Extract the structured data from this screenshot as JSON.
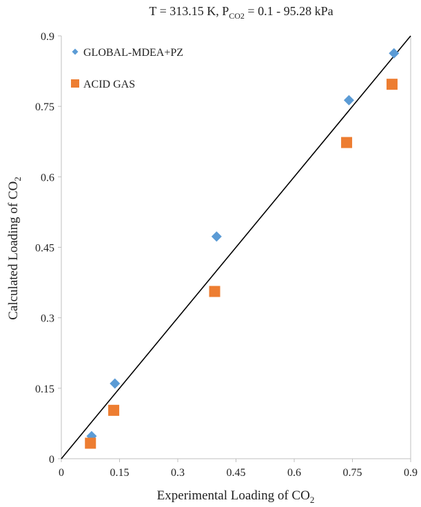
{
  "chart_data": {
    "type": "scatter",
    "title": {
      "prefix": "T = 313.15  K, P",
      "sub": "CO2",
      "suffix": " = 0.1  - 95.28  kPa"
    },
    "xlabel": {
      "main": "Experimental  Loading of CO",
      "sub": "2"
    },
    "ylabel": {
      "main": "Calculated Loading of CO",
      "sub": "2"
    },
    "xlim": [
      0,
      0.9
    ],
    "ylim": [
      0,
      0.9
    ],
    "xticks": [
      "0",
      "0.15",
      "0.3",
      "0.45",
      "0.6",
      "0.75",
      "0.9"
    ],
    "yticks": [
      "0",
      "0.15",
      "0.3",
      "0.45",
      "0.6",
      "0.75",
      "0.9"
    ],
    "grid": false,
    "legend_position": "top-left",
    "reference_line": {
      "from": [
        0,
        0
      ],
      "to": [
        0.9,
        0.9
      ],
      "color": "#000000"
    },
    "series": [
      {
        "name": "GLOBAL-MDEA+PZ",
        "marker": "diamond",
        "color": "#5B9BD5",
        "points": [
          [
            0.078,
            0.048
          ],
          [
            0.138,
            0.16
          ],
          [
            0.4,
            0.473
          ],
          [
            0.741,
            0.763
          ],
          [
            0.857,
            0.863
          ]
        ]
      },
      {
        "name": "ACID GAS",
        "marker": "square",
        "color": "#ED7D31",
        "points": [
          [
            0.075,
            0.033
          ],
          [
            0.135,
            0.103
          ],
          [
            0.395,
            0.356
          ],
          [
            0.735,
            0.673
          ],
          [
            0.852,
            0.797
          ]
        ]
      }
    ]
  }
}
